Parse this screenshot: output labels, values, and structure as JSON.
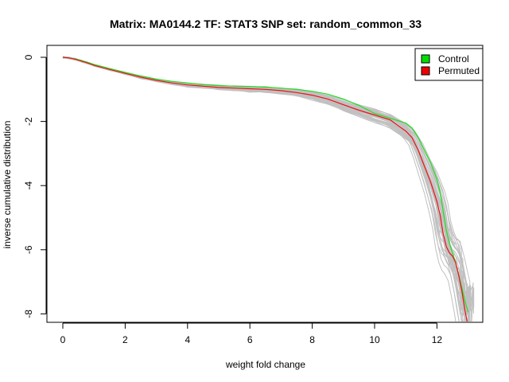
{
  "chart_data": {
    "type": "line",
    "title": "Matrix: MA0144.2 TF: STAT3 SNP set: random_common_33",
    "xlabel": "weight fold change",
    "ylabel": "inverse cumulative distribution",
    "xlim": [
      -0.7,
      13.5
    ],
    "ylim": [
      -8.3,
      0.2
    ],
    "x_ticks": [
      0,
      2,
      4,
      6,
      8,
      10,
      12
    ],
    "y_ticks": [
      0,
      -2,
      -4,
      -6,
      -8
    ],
    "legend": {
      "position": "top-right",
      "entries": [
        {
          "label": "Control",
          "color": "#00dd00"
        },
        {
          "label": "Permuted",
          "color": "#ee0000"
        }
      ]
    },
    "colors": {
      "control": "#22dd22",
      "permuted": "#ee1111",
      "background_curves": "#c0c0c0"
    },
    "series": [
      {
        "role": "control",
        "x": [
          0,
          0.2,
          0.4,
          0.6,
          0.8,
          1.0,
          1.5,
          2.0,
          2.5,
          3.0,
          3.5,
          4.0,
          4.5,
          5.0,
          5.5,
          6.0,
          6.5,
          7.0,
          7.5,
          8.0,
          8.5,
          9.0,
          9.5,
          10.0,
          10.5,
          11.0,
          11.2,
          11.4,
          11.6,
          11.8,
          12.0,
          12.1,
          12.2,
          12.3,
          12.4,
          12.5,
          12.6,
          12.7,
          12.8,
          12.9,
          13.0
        ],
        "values": [
          0,
          -0.02,
          -0.05,
          -0.1,
          -0.16,
          -0.22,
          -0.35,
          -0.47,
          -0.58,
          -0.68,
          -0.75,
          -0.8,
          -0.85,
          -0.88,
          -0.9,
          -0.91,
          -0.93,
          -0.96,
          -1.0,
          -1.06,
          -1.15,
          -1.3,
          -1.5,
          -1.75,
          -1.9,
          -2.05,
          -2.2,
          -2.5,
          -2.9,
          -3.3,
          -3.8,
          -4.2,
          -4.8,
          -5.4,
          -5.8,
          -6.1,
          -6.4,
          -6.8,
          -7.2,
          -7.6,
          -7.95
        ]
      },
      {
        "role": "permuted",
        "x": [
          0,
          0.2,
          0.4,
          0.6,
          0.8,
          1.0,
          1.5,
          2.0,
          2.5,
          3.0,
          3.5,
          4.0,
          4.5,
          5.0,
          5.5,
          6.0,
          6.5,
          7.0,
          7.5,
          8.0,
          8.5,
          9.0,
          9.5,
          10.0,
          10.5,
          11.0,
          11.2,
          11.4,
          11.6,
          11.8,
          12.0,
          12.1,
          12.2,
          12.3,
          12.4,
          12.5,
          12.6,
          12.7,
          12.8,
          12.9,
          13.0
        ],
        "values": [
          0,
          -0.02,
          -0.06,
          -0.12,
          -0.18,
          -0.25,
          -0.38,
          -0.5,
          -0.62,
          -0.72,
          -0.8,
          -0.86,
          -0.9,
          -0.94,
          -0.96,
          -0.98,
          -1.0,
          -1.04,
          -1.1,
          -1.18,
          -1.3,
          -1.48,
          -1.65,
          -1.8,
          -1.95,
          -2.3,
          -2.5,
          -2.9,
          -3.4,
          -3.9,
          -4.5,
          -4.9,
          -5.5,
          -5.9,
          -6.1,
          -6.2,
          -6.4,
          -6.8,
          -7.3,
          -7.9,
          -8.4
        ]
      }
    ]
  }
}
